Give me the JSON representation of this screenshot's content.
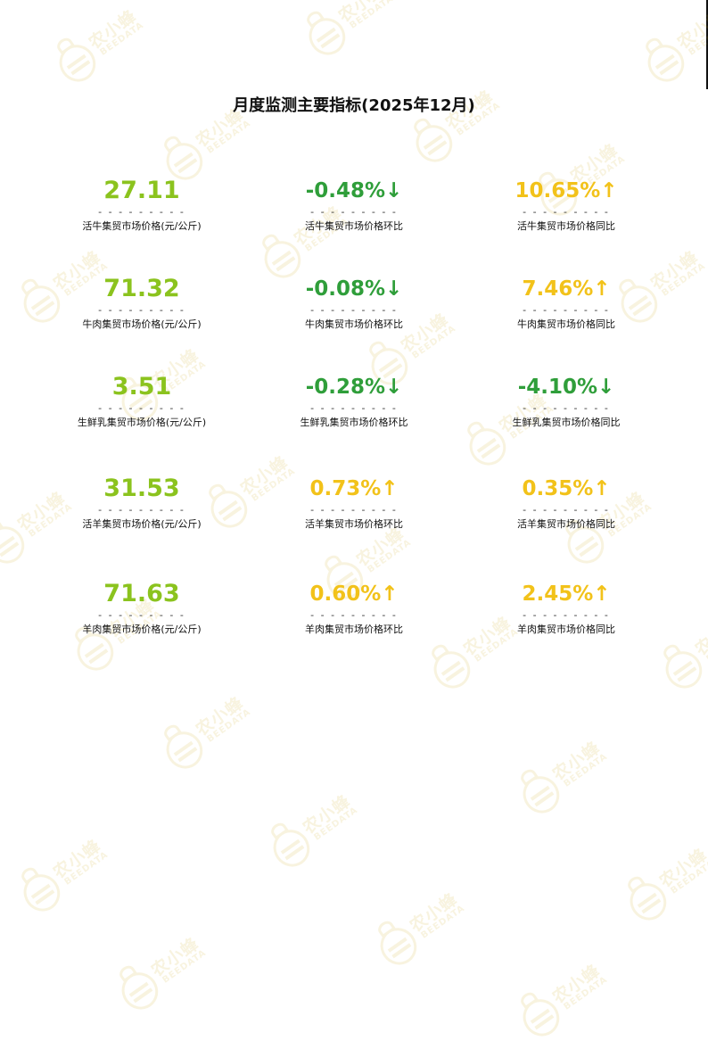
{
  "title": "月度监测主要指标(2025年12月)",
  "watermark": {
    "text": "农小蜂",
    "sub": "BEEDATA"
  },
  "colors": {
    "value_green": "#8bc31e",
    "down_green": "#2f9e3a",
    "up_yellow": "#f2c21a"
  },
  "separator": "- - - - - - - - -",
  "rows": [
    [
      {
        "value": "27.11",
        "label": "活牛集贸市场价格(元/公斤)",
        "tone": "green"
      },
      {
        "value": "-0.48%↓",
        "label": "活牛集贸市场价格环比",
        "tone": "dgreen"
      },
      {
        "value": "10.65%↑",
        "label": "活牛集贸市场价格同比",
        "tone": "yellow"
      }
    ],
    [
      {
        "value": "71.32",
        "label": "牛肉集贸市场价格(元/公斤)",
        "tone": "green"
      },
      {
        "value": "-0.08%↓",
        "label": "牛肉集贸市场价格环比",
        "tone": "dgreen"
      },
      {
        "value": "7.46%↑",
        "label": "牛肉集贸市场价格同比",
        "tone": "yellow"
      }
    ],
    [
      {
        "value": "3.51",
        "label": "生鲜乳集贸市场价格(元/公斤)",
        "tone": "green"
      },
      {
        "value": "-0.28%↓",
        "label": "生鲜乳集贸市场价格环比",
        "tone": "dgreen"
      },
      {
        "value": "-4.10%↓",
        "label": "生鲜乳集贸市场价格同比",
        "tone": "dgreen"
      }
    ],
    [
      {
        "value": "31.53",
        "label": "活羊集贸市场价格(元/公斤)",
        "tone": "green"
      },
      {
        "value": "0.73%↑",
        "label": "活羊集贸市场价格环比",
        "tone": "yellow"
      },
      {
        "value": "0.35%↑",
        "label": "活羊集贸市场价格同比",
        "tone": "yellow"
      }
    ],
    [
      {
        "value": "71.63",
        "label": "羊肉集贸市场价格(元/公斤)",
        "tone": "green"
      },
      {
        "value": "0.60%↑",
        "label": "羊肉集贸市场价格环比",
        "tone": "yellow"
      },
      {
        "value": "2.45%↑",
        "label": "羊肉集贸市场价格同比",
        "tone": "yellow"
      }
    ]
  ]
}
